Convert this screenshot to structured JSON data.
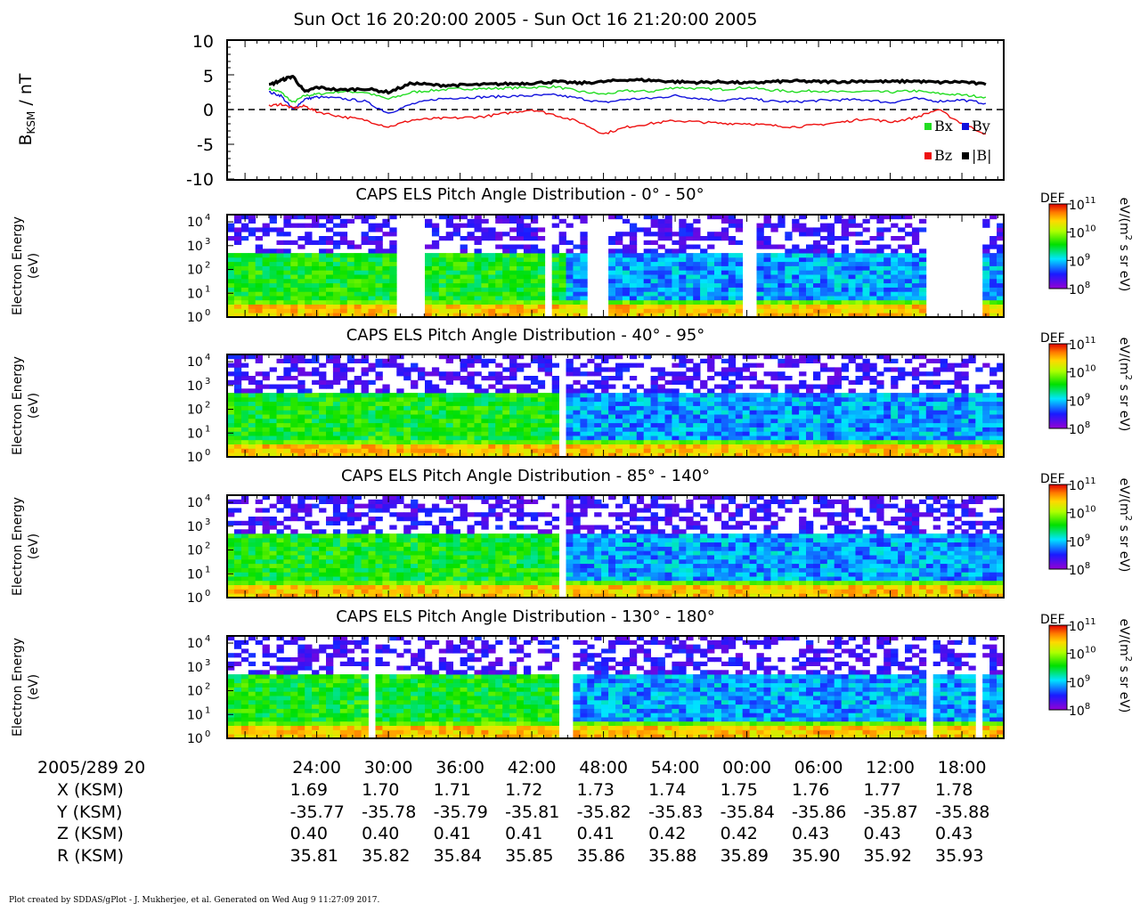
{
  "title": "Sun Oct 16 20:20:00 2005 - Sun Oct 16 21:20:00 2005",
  "footer": "Plot created by SDDAS/gPlot - J. Mukherjee, et al.  Generated on Wed Aug 9 11:27:09 2017.",
  "colors": {
    "bx": "#22dd22",
    "by": "#1111dd",
    "bz": "#ee1111",
    "bmag": "#000000"
  },
  "mag_panel": {
    "ylabel_main": "B",
    "ylabel_sub": "KSM",
    "ylabel_tail": " / nT",
    "ylim": [
      -10,
      10
    ],
    "yticks": [
      "10",
      "5",
      "0",
      "-5",
      "-10"
    ],
    "legend": {
      "bx": "Bx",
      "by": "By",
      "bz": "Bz",
      "bmag": "|B|"
    }
  },
  "spectrogram_panels": [
    {
      "title": "CAPS ELS Pitch Angle Distribution - 0° - 50°"
    },
    {
      "title": "CAPS ELS Pitch Angle Distribution - 40° - 95°"
    },
    {
      "title": "CAPS ELS Pitch Angle Distribution - 85° - 140°"
    },
    {
      "title": "CAPS ELS Pitch Angle Distribution - 130° - 180°"
    }
  ],
  "spec_ylabel_line1": "Electron Energy",
  "spec_ylabel_line2": "(eV)",
  "spec_yticks": [
    "10",
    "10",
    "10",
    "10",
    "10"
  ],
  "spec_ytick_exps": [
    "4",
    "3",
    "2",
    "1",
    "0"
  ],
  "colorbar": {
    "label": "DEF",
    "units_pre": "eV/(m",
    "units_exp": "2",
    "units_post": " s sr eV)",
    "ticks": [
      "10",
      "10",
      "10",
      "10"
    ],
    "tick_exps": [
      "11",
      "10",
      "9",
      "8"
    ]
  },
  "chart_data": [
    {
      "type": "line",
      "title": "",
      "ylabel": "BKSM / nT",
      "ylim": [
        -10,
        10
      ],
      "x_unit": "minutes after 2005/289 20:00",
      "x": [
        20,
        21,
        22,
        23,
        24,
        26,
        28,
        30,
        32,
        34,
        36,
        38,
        40,
        42,
        44,
        46,
        48,
        50,
        52,
        54,
        56,
        58,
        60,
        62,
        64,
        66,
        68,
        70,
        72,
        74,
        76,
        78,
        80
      ],
      "series": [
        {
          "name": "Bx",
          "values": [
            3.0,
            2.5,
            1.0,
            2.0,
            2.2,
            2.6,
            2.5,
            1.5,
            2.5,
            2.8,
            3.0,
            3.0,
            3.1,
            3.2,
            3.3,
            2.6,
            2.2,
            2.7,
            2.6,
            3.2,
            3.0,
            2.9,
            3.2,
            2.8,
            2.6,
            2.7,
            2.5,
            2.6,
            2.5,
            2.7,
            2.3,
            2.1,
            1.8
          ]
        },
        {
          "name": "By",
          "values": [
            2.5,
            2.0,
            0.0,
            1.5,
            1.8,
            1.6,
            1.2,
            -0.5,
            0.8,
            1.5,
            1.7,
            1.8,
            1.9,
            2.0,
            2.1,
            1.6,
            1.0,
            1.5,
            1.6,
            2.0,
            1.6,
            1.3,
            1.6,
            1.2,
            1.1,
            1.3,
            1.4,
            1.4,
            1.0,
            1.6,
            1.2,
            1.4,
            0.9
          ]
        },
        {
          "name": "Bz",
          "values": [
            0.5,
            0.8,
            0.2,
            0.5,
            -0.3,
            -1.0,
            -1.5,
            -2.5,
            -1.5,
            -1.3,
            -1.2,
            -1.0,
            -0.5,
            0.0,
            -0.8,
            -1.8,
            -3.5,
            -2.5,
            -2.0,
            -1.6,
            -1.8,
            -2.0,
            -2.0,
            -2.3,
            -2.5,
            -2.2,
            -1.8,
            -1.3,
            -1.8,
            -1.2,
            0.0,
            -2.0,
            -3.5
          ]
        },
        {
          "name": "|B|",
          "values": [
            3.5,
            4.2,
            4.8,
            2.5,
            3.2,
            2.8,
            3.0,
            2.5,
            3.8,
            3.5,
            3.5,
            3.6,
            3.7,
            3.8,
            4.0,
            3.8,
            4.0,
            4.3,
            4.2,
            4.0,
            3.9,
            4.0,
            3.8,
            4.0,
            4.1,
            4.0,
            4.0,
            4.1,
            4.0,
            4.1,
            3.9,
            4.0,
            3.6
          ]
        }
      ]
    },
    {
      "type": "heatmap",
      "title": "CAPS ELS Pitch Angle Distribution - 0° - 50°",
      "ylabel": "Electron Energy (eV)",
      "y_scale": "log",
      "ylim": [
        1,
        20000
      ],
      "zlabel": "DEF eV/(m2 s sr eV)",
      "zlim": [
        100000000.0,
        100000000000.0
      ],
      "data_gaps_min": [
        [
          30.5,
          33
        ],
        [
          43,
          43.7
        ],
        [
          46.5,
          48.5
        ],
        [
          59.5,
          61
        ],
        [
          75,
          80
        ]
      ]
    },
    {
      "type": "heatmap",
      "title": "CAPS ELS Pitch Angle Distribution - 40° - 95°",
      "ylabel": "Electron Energy (eV)",
      "y_scale": "log",
      "ylim": [
        1,
        20000
      ],
      "zlabel": "DEF eV/(m2 s sr eV)",
      "zlim": [
        100000000.0,
        100000000000.0
      ],
      "data_gaps_min": [
        [
          44.5,
          45
        ]
      ]
    },
    {
      "type": "heatmap",
      "title": "CAPS ELS Pitch Angle Distribution - 85° - 140°",
      "ylabel": "Electron Energy (eV)",
      "y_scale": "log",
      "ylim": [
        1,
        20000
      ],
      "zlabel": "DEF eV/(m2 s sr eV)",
      "zlim": [
        100000000.0,
        100000000000.0
      ],
      "data_gaps_min": [
        [
          44.5,
          45
        ]
      ]
    },
    {
      "type": "heatmap",
      "title": "CAPS ELS Pitch Angle Distribution - 130° - 180°",
      "ylabel": "Electron Energy (eV)",
      "y_scale": "log",
      "ylim": [
        1,
        20000
      ],
      "zlabel": "DEF eV/(m2 s sr eV)",
      "zlim": [
        100000000.0,
        100000000000.0
      ],
      "data_gaps_min": [
        [
          28.6,
          29.2
        ],
        [
          44.4,
          45.5
        ],
        [
          74.8,
          75.5
        ],
        [
          79.2,
          80
        ]
      ]
    }
  ],
  "time_axis": {
    "start_label": "2005/289 20",
    "tick_labels": [
      "24:00",
      "30:00",
      "36:00",
      "42:00",
      "48:00",
      "54:00",
      "00:00",
      "06:00",
      "12:00",
      "18:00"
    ],
    "rows": [
      {
        "label": "X (KSM)",
        "values": [
          "1.69",
          "1.70",
          "1.71",
          "1.72",
          "1.73",
          "1.74",
          "1.75",
          "1.76",
          "1.77",
          "1.78"
        ]
      },
      {
        "label": "Y (KSM)",
        "values": [
          "-35.77",
          "-35.78",
          "-35.79",
          "-35.81",
          "-35.82",
          "-35.83",
          "-35.84",
          "-35.86",
          "-35.87",
          "-35.88"
        ]
      },
      {
        "label": "Z (KSM)",
        "values": [
          "0.40",
          "0.40",
          "0.41",
          "0.41",
          "0.41",
          "0.42",
          "0.42",
          "0.43",
          "0.43",
          "0.43"
        ]
      },
      {
        "label": "R (KSM)",
        "values": [
          "35.81",
          "35.82",
          "35.84",
          "35.85",
          "35.86",
          "35.88",
          "35.89",
          "35.90",
          "35.92",
          "35.93"
        ]
      }
    ]
  }
}
